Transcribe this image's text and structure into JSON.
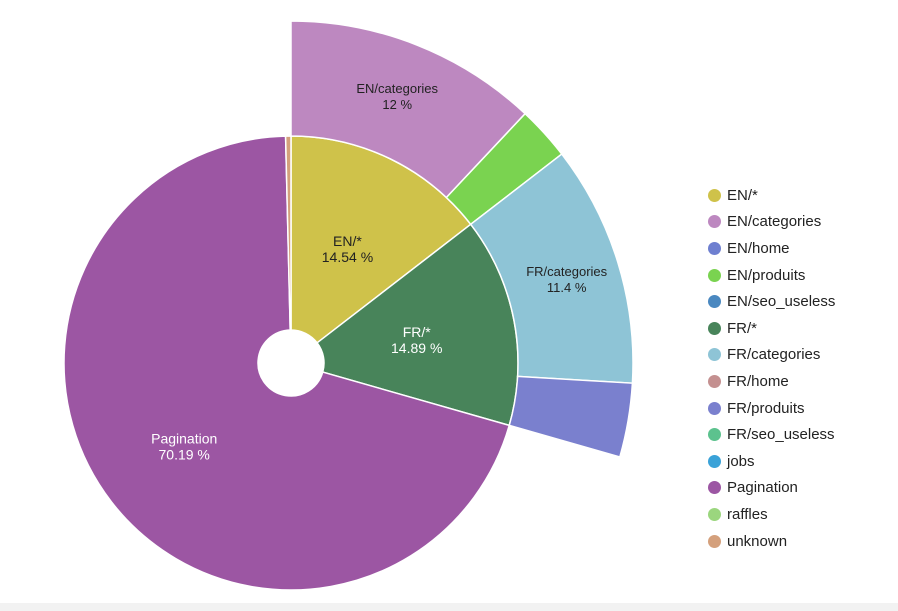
{
  "chart_data": {
    "type": "pie",
    "subtype": "sunburst",
    "title": "",
    "center_hole": true,
    "legend_position": "right",
    "legend": [
      {
        "name": "EN/*",
        "color": "#cfc24a"
      },
      {
        "name": "EN/categories",
        "color": "#bd88c0"
      },
      {
        "name": "EN/home",
        "color": "#6e7fd0"
      },
      {
        "name": "EN/produits",
        "color": "#7ad350"
      },
      {
        "name": "EN/seo_useless",
        "color": "#4a88c0"
      },
      {
        "name": "FR/*",
        "color": "#48845a"
      },
      {
        "name": "FR/categories",
        "color": "#8ec4d6"
      },
      {
        "name": "FR/home",
        "color": "#c49090"
      },
      {
        "name": "FR/produits",
        "color": "#7a80ce"
      },
      {
        "name": "FR/seo_useless",
        "color": "#5cc28e"
      },
      {
        "name": "jobs",
        "color": "#3aa2d8"
      },
      {
        "name": "Pagination",
        "color": "#9c56a3"
      },
      {
        "name": "raffles",
        "color": "#9bd67e"
      },
      {
        "name": "unknown",
        "color": "#d4a07c"
      }
    ],
    "inner_slices": [
      {
        "name": "EN/*",
        "value": 14.54,
        "label": "EN/*",
        "value_label": "14.54 %"
      },
      {
        "name": "FR/*",
        "value": 14.89,
        "label": "FR/*",
        "value_label": "14.89 %"
      },
      {
        "name": "Pagination",
        "value": 70.19,
        "label": "Pagination",
        "value_label": "70.19 %"
      },
      {
        "name": "unknown",
        "value": 0.38,
        "label": "",
        "value_label": ""
      }
    ],
    "outer_slices": [
      {
        "name": "EN/categories",
        "parent": "EN/*",
        "value": 12,
        "label": "EN/categories",
        "value_label": "12 %"
      },
      {
        "name": "EN/produits",
        "parent": "EN/*",
        "value": 2.54,
        "label": "",
        "value_label": ""
      },
      {
        "name": "FR/categories",
        "parent": "FR/*",
        "value": 11.4,
        "label": "FR/categories",
        "value_label": "11.4 %"
      },
      {
        "name": "FR/produits",
        "parent": "FR/*",
        "value": 3.49,
        "label": "",
        "value_label": ""
      }
    ]
  }
}
